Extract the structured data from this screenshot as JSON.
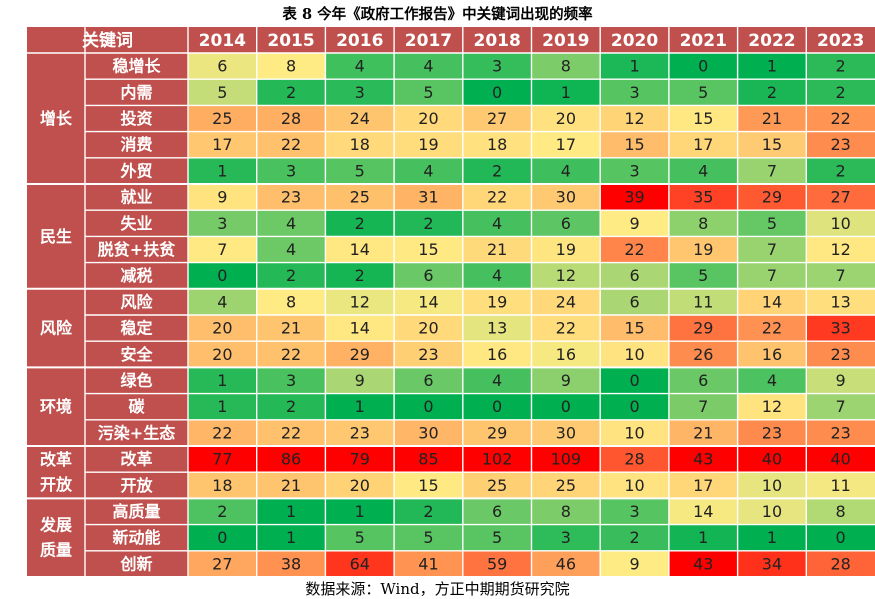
{
  "title": "表 8   今年《政府工作报告》中关键词出现的频率",
  "source": "数据来源：Wind，方正中期期货研究院",
  "colors": {
    "header_bg": "#c0504d",
    "grid_line": "#ffffff",
    "text_on_header": "#ffffff",
    "value_text": "#222222",
    "scale_low": "#00b050",
    "scale_mid": "#ffeb84",
    "scale_high": "#ff0000"
  },
  "chart_data": {
    "type": "heatmap",
    "header_label": "关键词",
    "years": [
      "2014",
      "2015",
      "2016",
      "2017",
      "2018",
      "2019",
      "2020",
      "2021",
      "2022",
      "2023"
    ],
    "groups": [
      {
        "category": [
          "增长"
        ],
        "rows": [
          {
            "keyword": "稳增长",
            "values": [
              6,
              8,
              4,
              4,
              3,
              8,
              1,
              0,
              1,
              2
            ]
          },
          {
            "keyword": "内需",
            "values": [
              5,
              2,
              3,
              5,
              0,
              1,
              3,
              5,
              2,
              2
            ]
          },
          {
            "keyword": "投资",
            "values": [
              25,
              28,
              24,
              20,
              27,
              20,
              12,
              15,
              21,
              22
            ]
          },
          {
            "keyword": "消费",
            "values": [
              17,
              22,
              18,
              19,
              18,
              17,
              15,
              17,
              15,
              23
            ]
          },
          {
            "keyword": "外贸",
            "values": [
              1,
              3,
              5,
              4,
              2,
              4,
              3,
              4,
              7,
              2
            ]
          }
        ]
      },
      {
        "category": [
          "民生"
        ],
        "rows": [
          {
            "keyword": "就业",
            "values": [
              9,
              23,
              25,
              31,
              22,
              30,
              39,
              35,
              29,
              27
            ]
          },
          {
            "keyword": "失业",
            "values": [
              3,
              4,
              2,
              2,
              4,
              6,
              9,
              8,
              5,
              10
            ]
          },
          {
            "keyword": "脱贫+扶贫",
            "values": [
              7,
              4,
              14,
              15,
              21,
              19,
              22,
              19,
              7,
              12
            ]
          },
          {
            "keyword": "减税",
            "values": [
              0,
              2,
              2,
              6,
              4,
              12,
              6,
              5,
              7,
              7
            ]
          }
        ]
      },
      {
        "category": [
          "风险"
        ],
        "rows": [
          {
            "keyword": "风险",
            "values": [
              4,
              8,
              12,
              14,
              19,
              24,
              6,
              11,
              14,
              13
            ]
          },
          {
            "keyword": "稳定",
            "values": [
              20,
              21,
              14,
              20,
              13,
              22,
              15,
              29,
              22,
              33
            ]
          },
          {
            "keyword": "安全",
            "values": [
              20,
              22,
              29,
              23,
              16,
              16,
              10,
              26,
              16,
              23
            ]
          }
        ]
      },
      {
        "category": [
          "环境"
        ],
        "rows": [
          {
            "keyword": "绿色",
            "values": [
              1,
              3,
              9,
              6,
              4,
              9,
              0,
              6,
              4,
              9
            ]
          },
          {
            "keyword": "碳",
            "values": [
              1,
              2,
              1,
              0,
              0,
              0,
              0,
              7,
              12,
              7
            ]
          },
          {
            "keyword": "污染+生态",
            "values": [
              22,
              22,
              23,
              30,
              29,
              30,
              10,
              21,
              23,
              23
            ]
          }
        ]
      },
      {
        "category": [
          "改革",
          "开放"
        ],
        "rows": [
          {
            "keyword": "改革",
            "values": [
              77,
              86,
              79,
              85,
              102,
              109,
              28,
              43,
              40,
              40
            ]
          },
          {
            "keyword": "开放",
            "values": [
              18,
              21,
              20,
              15,
              25,
              25,
              10,
              17,
              10,
              11
            ]
          }
        ]
      },
      {
        "category": [
          "发展",
          "质量"
        ],
        "rows": [
          {
            "keyword": "高质量",
            "values": [
              2,
              1,
              1,
              2,
              6,
              8,
              3,
              14,
              10,
              8
            ]
          },
          {
            "keyword": "新动能",
            "values": [
              0,
              1,
              5,
              5,
              5,
              3,
              2,
              1,
              1,
              0
            ]
          },
          {
            "keyword": "创新",
            "values": [
              27,
              38,
              64,
              41,
              59,
              46,
              9,
              43,
              34,
              28
            ]
          }
        ]
      }
    ]
  }
}
